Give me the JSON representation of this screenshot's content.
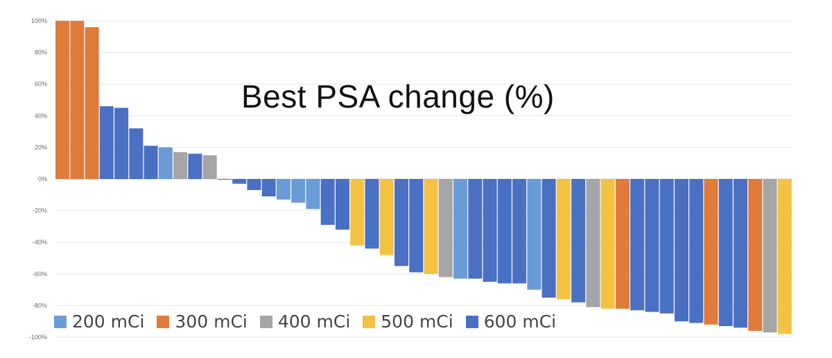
{
  "chart_data": {
    "type": "bar",
    "title": "Best PSA change (%)",
    "ylim": [
      -100,
      100
    ],
    "y_ticks": [
      100,
      80,
      60,
      40,
      20,
      0,
      -20,
      -40,
      -60,
      -80,
      -100
    ],
    "y_tick_labels": [
      "100%",
      "80%",
      "60%",
      "40%",
      "20%",
      "0%",
      "-20%",
      "-40%",
      "-60%",
      "-80%",
      "-100%"
    ],
    "grid": true,
    "legend_position": "bottom",
    "series": [
      {
        "name": "200 mCi",
        "color": "#6A9BD6"
      },
      {
        "name": "300 mCi",
        "color": "#E07B3C"
      },
      {
        "name": "400 mCi",
        "color": "#A5A5A5"
      },
      {
        "name": "500 mCi",
        "color": "#F4C243"
      },
      {
        "name": "600 mCi",
        "color": "#4A70C4"
      }
    ],
    "bars": [
      {
        "value": 100,
        "group": 1
      },
      {
        "value": 100,
        "group": 1
      },
      {
        "value": 96,
        "group": 1
      },
      {
        "value": 46,
        "group": 4
      },
      {
        "value": 45,
        "group": 4
      },
      {
        "value": 32,
        "group": 4
      },
      {
        "value": 21,
        "group": 4
      },
      {
        "value": 20,
        "group": 0
      },
      {
        "value": 17,
        "group": 2
      },
      {
        "value": 16,
        "group": 4
      },
      {
        "value": 15,
        "group": 2
      },
      {
        "value": 0,
        "group": 4
      },
      {
        "value": -3,
        "group": 4
      },
      {
        "value": -7,
        "group": 4
      },
      {
        "value": -11,
        "group": 4
      },
      {
        "value": -13,
        "group": 0
      },
      {
        "value": -15,
        "group": 0
      },
      {
        "value": -19,
        "group": 0
      },
      {
        "value": -29,
        "group": 4
      },
      {
        "value": -32,
        "group": 4
      },
      {
        "value": -42,
        "group": 3
      },
      {
        "value": -44,
        "group": 4
      },
      {
        "value": -48,
        "group": 3
      },
      {
        "value": -55,
        "group": 4
      },
      {
        "value": -59,
        "group": 4
      },
      {
        "value": -60,
        "group": 3
      },
      {
        "value": -62,
        "group": 2
      },
      {
        "value": -63,
        "group": 0
      },
      {
        "value": -63,
        "group": 4
      },
      {
        "value": -65,
        "group": 4
      },
      {
        "value": -66,
        "group": 4
      },
      {
        "value": -66,
        "group": 4
      },
      {
        "value": -70,
        "group": 0
      },
      {
        "value": -75,
        "group": 4
      },
      {
        "value": -76,
        "group": 3
      },
      {
        "value": -78,
        "group": 4
      },
      {
        "value": -81,
        "group": 2
      },
      {
        "value": -82,
        "group": 3
      },
      {
        "value": -82,
        "group": 1
      },
      {
        "value": -83,
        "group": 4
      },
      {
        "value": -84,
        "group": 4
      },
      {
        "value": -85,
        "group": 4
      },
      {
        "value": -90,
        "group": 4
      },
      {
        "value": -91,
        "group": 4
      },
      {
        "value": -92,
        "group": 1
      },
      {
        "value": -93,
        "group": 4
      },
      {
        "value": -94,
        "group": 4
      },
      {
        "value": -96,
        "group": 1
      },
      {
        "value": -97,
        "group": 2
      },
      {
        "value": -98,
        "group": 3
      }
    ]
  }
}
